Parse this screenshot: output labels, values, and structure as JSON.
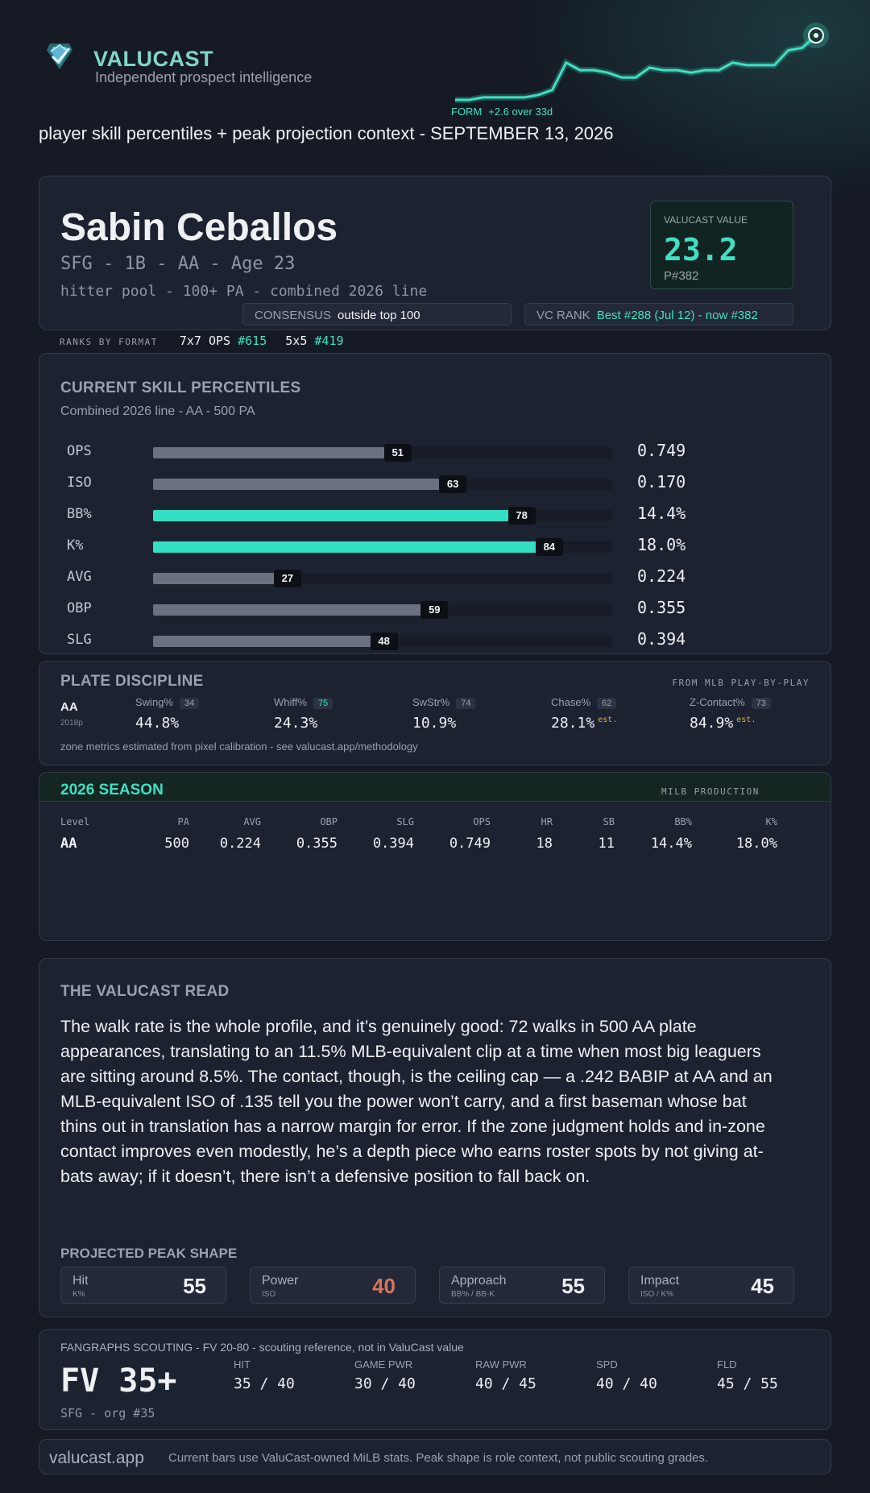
{
  "header": {
    "brand": "VALUCAST",
    "tagline": "Independent prospect intelligence",
    "form_key": "FORM",
    "form_value": "+2.6 over 33d",
    "subtitle": "player skill percentiles + peak projection context - SEPTEMBER 13, 2026",
    "logo_icon": "shield-arrow-icon"
  },
  "form_chart": {
    "type": "line",
    "values": [
      0.0,
      0.0,
      0.1,
      0.1,
      0.1,
      0.1,
      0.2,
      0.4,
      1.5,
      1.2,
      1.2,
      1.1,
      0.9,
      0.9,
      1.3,
      1.2,
      1.2,
      1.1,
      1.2,
      1.2,
      1.5,
      1.4,
      1.4,
      1.4,
      2.0,
      2.1,
      2.6
    ],
    "color": "#3fe0c2"
  },
  "player": {
    "name": "Sabin Ceballos",
    "line1": "SFG - 1B - AA - Age 23",
    "line2": "hitter pool - 100+ PA - combined 2026 line",
    "value_label": "VALUCAST VALUE",
    "value": "23.2",
    "value_rank": "P#382",
    "consensus_key": "CONSENSUS",
    "consensus_value": "outside top 100",
    "vcrank_key": "VC RANK",
    "vcrank_value": "Best #288 (Jul 12) - now #382"
  },
  "ranks": {
    "label": "RANKS BY FORMAT",
    "formats": [
      {
        "name": "7x7 OPS",
        "rank": "#615"
      },
      {
        "name": "5x5",
        "rank": "#419"
      }
    ]
  },
  "percentiles": {
    "title": "CURRENT SKILL PERCENTILES",
    "subtitle": "Combined 2026 line - AA - 500 PA",
    "rows": [
      {
        "label": "OPS",
        "pct": 51,
        "value": "0.749",
        "highlight": false
      },
      {
        "label": "ISO",
        "pct": 63,
        "value": "0.170",
        "highlight": false
      },
      {
        "label": "BB%",
        "pct": 78,
        "value": "14.4%",
        "highlight": true
      },
      {
        "label": "K%",
        "pct": 84,
        "value": "18.0%",
        "highlight": true
      },
      {
        "label": "AVG",
        "pct": 27,
        "value": "0.224",
        "highlight": false
      },
      {
        "label": "OBP",
        "pct": 59,
        "value": "0.355",
        "highlight": false
      },
      {
        "label": "SLG",
        "pct": 48,
        "value": "0.394",
        "highlight": false
      }
    ]
  },
  "plate": {
    "title": "PLATE DISCIPLINE",
    "source": "FROM MLB PLAY-BY-PLAY",
    "level": "AA",
    "pitches": "2018p",
    "metrics": [
      {
        "label": "Swing%",
        "pct": "34",
        "value": "44.8%",
        "est": "",
        "teal": false
      },
      {
        "label": "Whiff%",
        "pct": "75",
        "value": "24.3%",
        "est": "",
        "teal": true
      },
      {
        "label": "SwStr%",
        "pct": "74",
        "value": "10.9%",
        "est": "",
        "teal": false
      },
      {
        "label": "Chase%",
        "pct": "62",
        "value": "28.1%",
        "est": "est.",
        "teal": false
      },
      {
        "label": "Z-Contact%",
        "pct": "73",
        "value": "84.9%",
        "est": "est.",
        "teal": false
      }
    ],
    "note": "zone metrics estimated from pixel calibration - see valucast.app/methodology"
  },
  "season": {
    "title": "2026 SEASON",
    "source": "MILB PRODUCTION",
    "headers": [
      "Level",
      "PA",
      "AVG",
      "OBP",
      "SLG",
      "OPS",
      "HR",
      "SB",
      "BB%",
      "K%"
    ],
    "rows": [
      [
        "AA",
        "500",
        "0.224",
        "0.355",
        "0.394",
        "0.749",
        "18",
        "11",
        "14.4%",
        "18.0%"
      ]
    ]
  },
  "read": {
    "title": "THE VALUCAST READ",
    "body": "The walk rate is the whole profile, and it’s genuinely good: 72 walks in 500 AA plate appearances, translating to an 11.5% MLB-equivalent clip at a time when most big leaguers are sitting around 8.5%. The contact, though, is the ceiling cap — a .242 BABIP at AA and an MLB-equivalent ISO of .135 tell you the power won’t carry, and a first baseman whose bat thins out in translation has a narrow margin for error. If the zone judgment holds and in-zone contact improves even modestly, he’s a depth piece who earns roster spots by not giving at-bats away; if it doesn’t, there isn’t a defensive position to fall back on.",
    "peak_title": "PROJECTED PEAK SHAPE",
    "peak": [
      {
        "label": "Hit",
        "sub": "K%",
        "value": "55",
        "warn": false
      },
      {
        "label": "Power",
        "sub": "ISO",
        "value": "40",
        "warn": true
      },
      {
        "label": "Approach",
        "sub": "BB% / BB-K",
        "value": "55",
        "warn": false
      },
      {
        "label": "Impact",
        "sub": "ISO / K%",
        "value": "45",
        "warn": false
      }
    ]
  },
  "fangraphs": {
    "header": "FANGRAPHS SCOUTING - FV 20-80 - scouting reference, not in ValuCast value",
    "fv": "FV 35+",
    "org": "SFG - org #35",
    "grades": [
      {
        "label": "HIT",
        "value": "35 / 40"
      },
      {
        "label": "GAME PWR",
        "value": "30 / 40"
      },
      {
        "label": "RAW PWR",
        "value": "40 / 45"
      },
      {
        "label": "SPD",
        "value": "40 / 40"
      },
      {
        "label": "FLD",
        "value": "45 / 55"
      }
    ]
  },
  "footer": {
    "site": "valucast.app",
    "note": "Current bars use ValuCast-owned MiLB stats. Peak shape is role context, not public scouting grades."
  }
}
